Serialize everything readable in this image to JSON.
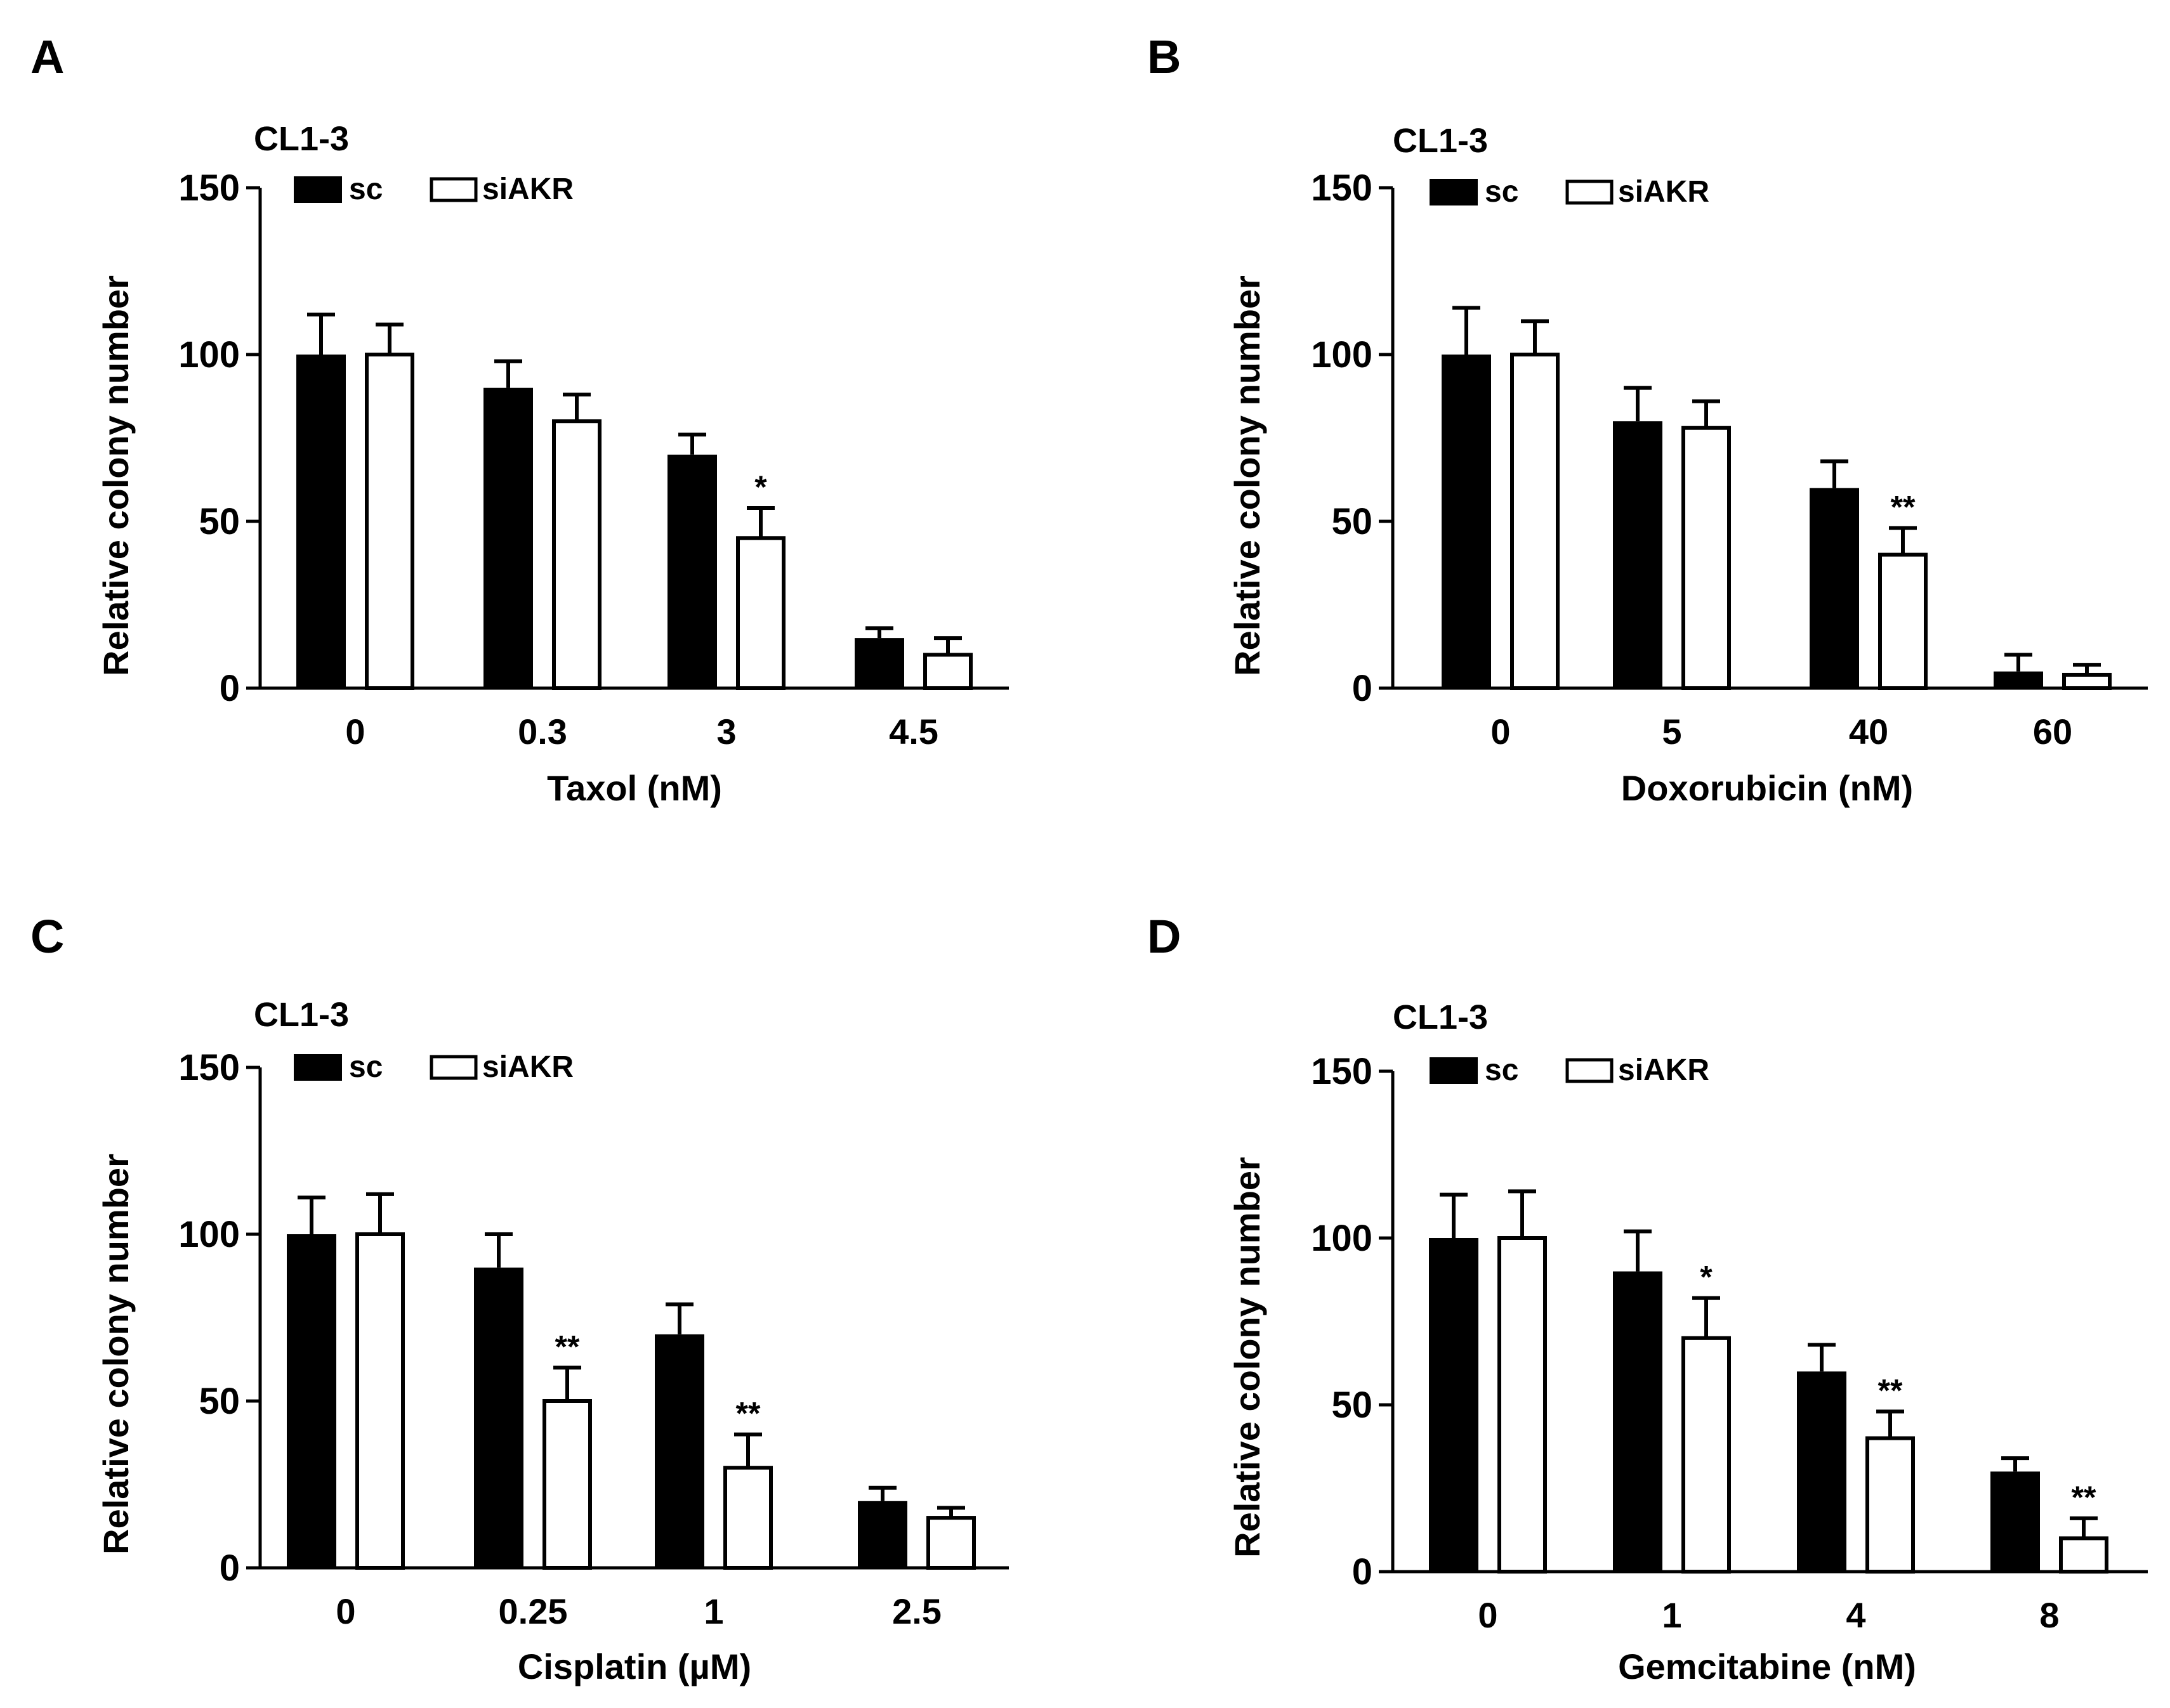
{
  "chart_data": [
    {
      "type": "bar",
      "panel": "A",
      "cell_line": "CL1-3",
      "xlabel": "Taxol (nM)",
      "ylabel": "Relative colony number",
      "ylim": [
        0,
        150
      ],
      "yticks": [
        "0",
        "50",
        "100",
        "150"
      ],
      "categories": [
        "0",
        "0.3",
        "3",
        "4.5"
      ],
      "legend": [
        "sc",
        "siAKR"
      ],
      "legend_position": "top-left",
      "series": [
        {
          "name": "sc",
          "fill": "#000000",
          "values": [
            100,
            90,
            70,
            15
          ],
          "errors": [
            12,
            8,
            6,
            3
          ],
          "significance": [
            "",
            "",
            "",
            ""
          ]
        },
        {
          "name": "siAKR",
          "fill": "#ffffff",
          "values": [
            100,
            80,
            45,
            10
          ],
          "errors": [
            9,
            8,
            9,
            5
          ],
          "significance": [
            "",
            "",
            "*",
            ""
          ]
        }
      ]
    },
    {
      "type": "bar",
      "panel": "B",
      "cell_line": "CL1-3",
      "xlabel": "Doxorubicin (nM)",
      "ylabel": "Relative colony number",
      "ylim": [
        0,
        150
      ],
      "yticks": [
        "0",
        "50",
        "100",
        "150"
      ],
      "categories": [
        "0",
        "5",
        "40",
        "60"
      ],
      "legend": [
        "sc",
        "siAKR"
      ],
      "legend_position": "top-left",
      "series": [
        {
          "name": "sc",
          "fill": "#000000",
          "values": [
            100,
            80,
            60,
            5
          ],
          "errors": [
            14,
            10,
            8,
            5
          ],
          "significance": [
            "",
            "",
            "",
            ""
          ]
        },
        {
          "name": "siAKR",
          "fill": "#ffffff",
          "values": [
            100,
            78,
            40,
            4
          ],
          "errors": [
            10,
            8,
            8,
            3
          ],
          "significance": [
            "",
            "",
            "**",
            ""
          ]
        }
      ]
    },
    {
      "type": "bar",
      "panel": "C",
      "cell_line": "CL1-3",
      "xlabel": "Cisplatin (µM)",
      "ylabel": "Relative colony number",
      "ylim": [
        0,
        150
      ],
      "yticks": [
        "0",
        "50",
        "100",
        "150"
      ],
      "categories": [
        "0",
        "0.25",
        "1",
        "2.5"
      ],
      "legend": [
        "sc",
        "siAKR"
      ],
      "legend_position": "top-left",
      "series": [
        {
          "name": "sc",
          "fill": "#000000",
          "values": [
            100,
            90,
            70,
            20
          ],
          "errors": [
            11,
            10,
            9,
            4
          ],
          "significance": [
            "",
            "",
            "",
            ""
          ]
        },
        {
          "name": "siAKR",
          "fill": "#ffffff",
          "values": [
            100,
            50,
            30,
            15
          ],
          "errors": [
            12,
            10,
            10,
            3
          ],
          "significance": [
            "",
            "**",
            "**",
            ""
          ]
        }
      ]
    },
    {
      "type": "bar",
      "panel": "D",
      "cell_line": "CL1-3",
      "xlabel": "Gemcitabine (nM)",
      "ylabel": "Relative colony number",
      "ylim": [
        0,
        150
      ],
      "yticks": [
        "0",
        "50",
        "100",
        "150"
      ],
      "categories": [
        "0",
        "1",
        "4",
        "8"
      ],
      "legend": [
        "sc",
        "siAKR"
      ],
      "legend_position": "top-left",
      "series": [
        {
          "name": "sc",
          "fill": "#000000",
          "values": [
            100,
            90,
            60,
            30
          ],
          "errors": [
            13,
            12,
            8,
            4
          ],
          "significance": [
            "",
            "",
            "",
            ""
          ]
        },
        {
          "name": "siAKR",
          "fill": "#ffffff",
          "values": [
            100,
            70,
            40,
            10
          ],
          "errors": [
            14,
            12,
            8,
            6
          ],
          "significance": [
            "",
            "*",
            "**",
            "**"
          ]
        }
      ]
    }
  ]
}
